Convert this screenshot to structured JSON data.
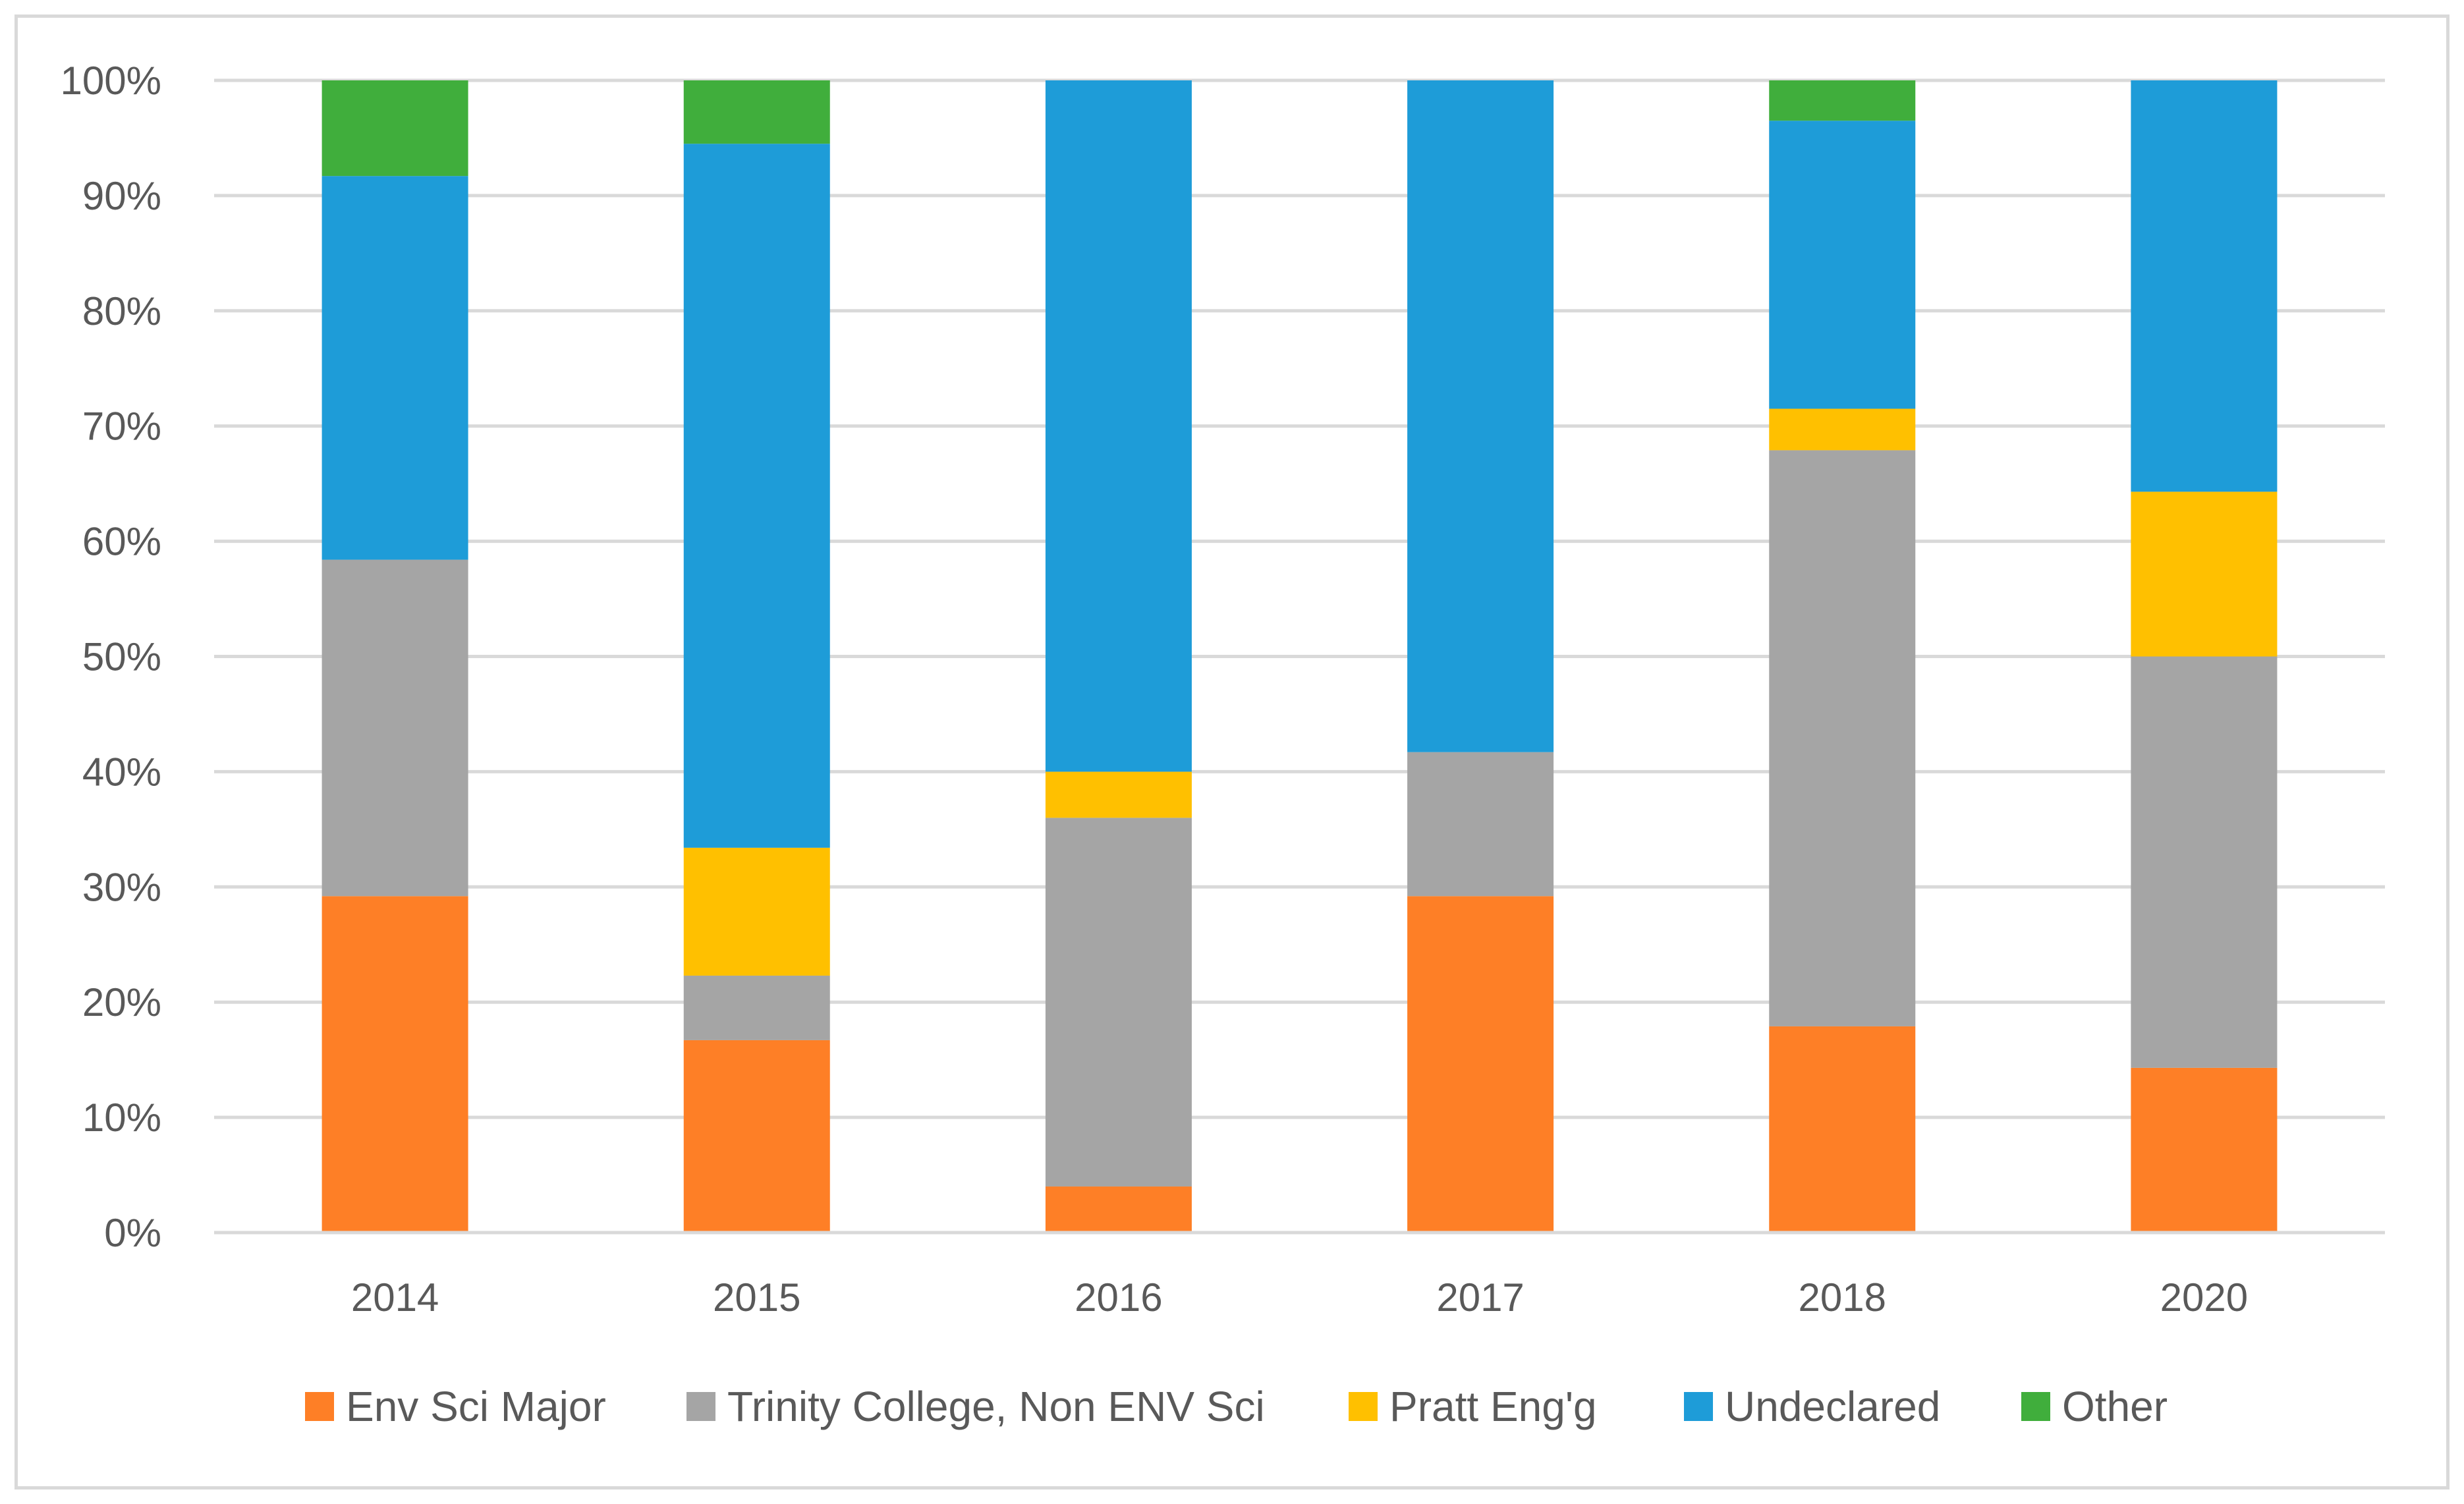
{
  "chart_data": {
    "type": "bar",
    "stacked": true,
    "percent": true,
    "title": "",
    "xlabel": "",
    "ylabel": "",
    "categories": [
      "2014",
      "2015",
      "2016",
      "2017",
      "2018",
      "2020"
    ],
    "ylim": [
      0,
      100
    ],
    "yticks": [
      "0%",
      "10%",
      "20%",
      "30%",
      "40%",
      "50%",
      "60%",
      "70%",
      "80%",
      "90%",
      "100%"
    ],
    "grid": true,
    "legend_position": "bottom",
    "series": [
      {
        "name": "Env Sci Major",
        "color": "#fe7f26",
        "values": [
          29.2,
          16.7,
          4.0,
          29.2,
          17.9,
          14.3
        ]
      },
      {
        "name": "Trinity College, Non ENV Sci",
        "color": "#a5a5a5",
        "values": [
          29.2,
          5.6,
          32.0,
          12.5,
          50.0,
          35.7
        ]
      },
      {
        "name": "Pratt Eng'g",
        "color": "#ffc000",
        "values": [
          0,
          11.1,
          4.0,
          0,
          3.6,
          14.3
        ]
      },
      {
        "name": "Undeclared",
        "color": "#1e9cd8",
        "values": [
          33.3,
          61.1,
          60.0,
          58.3,
          25.0,
          35.7
        ]
      },
      {
        "name": "Other",
        "color": "#40ae3c",
        "values": [
          8.3,
          5.5,
          0,
          0,
          3.5,
          0
        ]
      }
    ]
  }
}
